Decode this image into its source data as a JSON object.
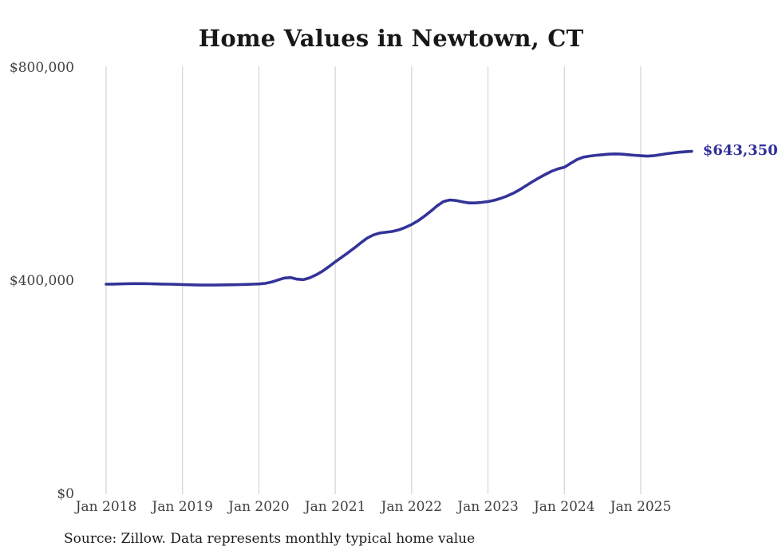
{
  "chart": {
    "title": "Home Values in Newtown, CT",
    "end_label": "$643,350",
    "source": "Source: Zillow. Data represents monthly typical home value"
  },
  "colors": {
    "line": "#333399",
    "end_label": "#2e2e99",
    "grid": "#cccccc",
    "axis_text": "#414141",
    "title_text": "#181818"
  },
  "chart_data": {
    "type": "line",
    "title": "Home Values in Newtown, CT",
    "xlabel": "",
    "ylabel": "",
    "ylim": [
      0,
      800000
    ],
    "grid": "vertical-only",
    "legend": "none",
    "frequency": "monthly",
    "x_start": "2018-01",
    "x_end": "2025-09",
    "x_ticks": [
      "Jan 2018",
      "Jan 2019",
      "Jan 2020",
      "Jan 2021",
      "Jan 2022",
      "Jan 2023",
      "Jan 2024",
      "Jan 2025"
    ],
    "y_ticks": [
      {
        "label": "$800,000",
        "value": 800000
      },
      {
        "label": "$400,000",
        "value": 400000
      },
      {
        "label": "$0",
        "value": 0
      }
    ],
    "series": [
      {
        "name": "Typical home value",
        "values": [
          394000,
          394200,
          394500,
          394800,
          395000,
          395100,
          395000,
          394800,
          394500,
          394200,
          394000,
          393700,
          393300,
          392900,
          392600,
          392400,
          392300,
          392400,
          392600,
          392800,
          393000,
          393300,
          393600,
          394000,
          394500,
          395500,
          398000,
          402000,
          405500,
          406500,
          403500,
          402500,
          406000,
          411500,
          418500,
          427000,
          436000,
          444500,
          453000,
          462000,
          471500,
          480500,
          486500,
          490000,
          491500,
          493000,
          496000,
          500500,
          506000,
          513000,
          521500,
          531000,
          541000,
          549000,
          552000,
          551000,
          548500,
          546500,
          546500,
          547500,
          549000,
          551500,
          555000,
          559500,
          565000,
          571500,
          579000,
          586500,
          593500,
          600000,
          606000,
          610500,
          613500,
          621000,
          628000,
          632500,
          634500,
          636000,
          637000,
          638000,
          638500,
          638000,
          637000,
          636000,
          635000,
          634300,
          635000,
          636800,
          638800,
          640300,
          641600,
          642600,
          643350
        ]
      }
    ],
    "final_value": 643350,
    "annotations": [
      {
        "text": "$643,350",
        "position": "line-end"
      }
    ]
  }
}
